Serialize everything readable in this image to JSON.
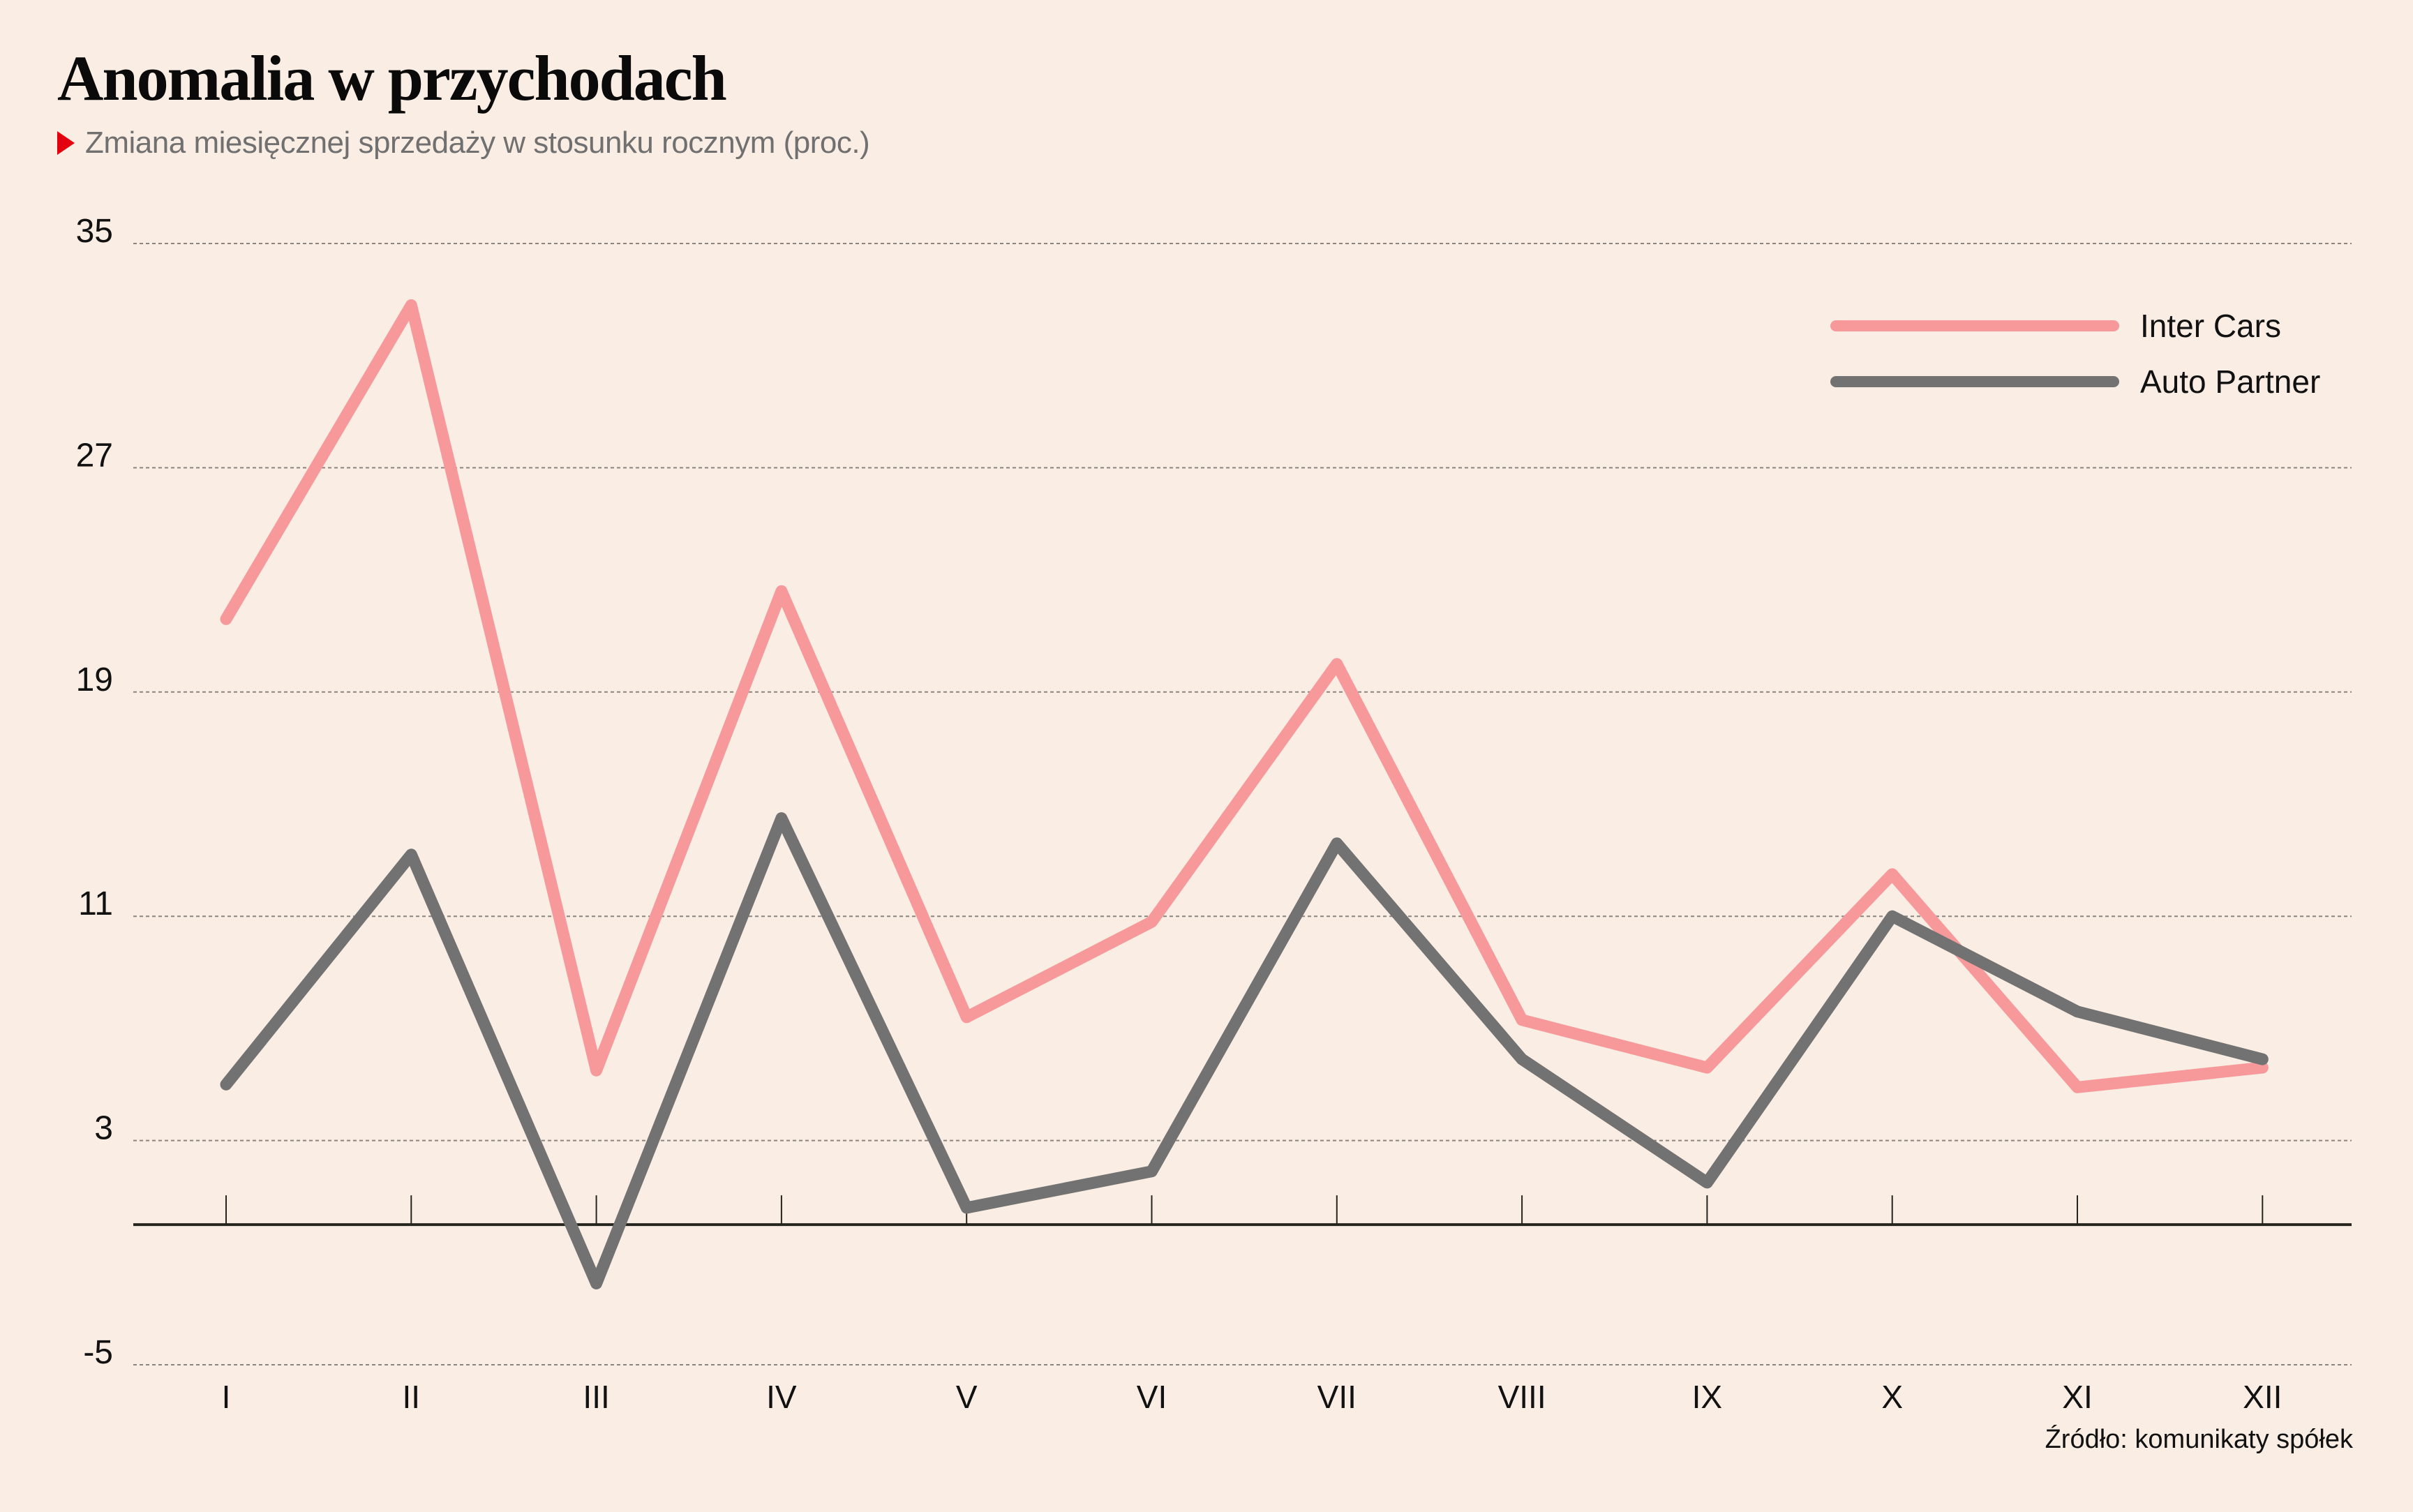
{
  "header": {
    "title": "Anomalia w przychodach",
    "subtitle": "Zmiana miesięcznej sprzedaży w stosunku rocznym (proc.)",
    "marker_color": "#E3000F"
  },
  "footer": {
    "source": "Źródło: komunikaty spółek"
  },
  "colors": {
    "background": "#FAEEE4",
    "inter_cars": "#F7999A",
    "auto_partner": "#727272",
    "axis": "#25241E",
    "grid": "#8A8580"
  },
  "chart_data": {
    "type": "line",
    "title": "Anomalia w przychodach",
    "subtitle": "Zmiana miesięcznej sprzedaży w stosunku rocznym (proc.)",
    "xlabel": "",
    "ylabel": "",
    "categories": [
      "I",
      "II",
      "III",
      "IV",
      "V",
      "VI",
      "VII",
      "VIII",
      "IX",
      "X",
      "XI",
      "XII"
    ],
    "yticks": [
      35,
      27,
      19,
      11,
      3,
      -5
    ],
    "ylim": [
      -5,
      35
    ],
    "grid": true,
    "zero_line": true,
    "legend_position": "top-right",
    "series": [
      {
        "name": "Inter Cars",
        "color": "#F7999A",
        "values": [
          21.6,
          32.8,
          5.5,
          22.6,
          7.4,
          10.8,
          20.0,
          7.3,
          5.6,
          12.5,
          4.9,
          5.6
        ]
      },
      {
        "name": "Auto Partner",
        "color": "#727272",
        "values": [
          5.0,
          13.2,
          -2.1,
          14.5,
          0.6,
          1.9,
          13.6,
          5.9,
          1.5,
          11.0,
          7.6,
          5.9
        ]
      }
    ],
    "source": "Źródło: komunikaty spółek"
  }
}
